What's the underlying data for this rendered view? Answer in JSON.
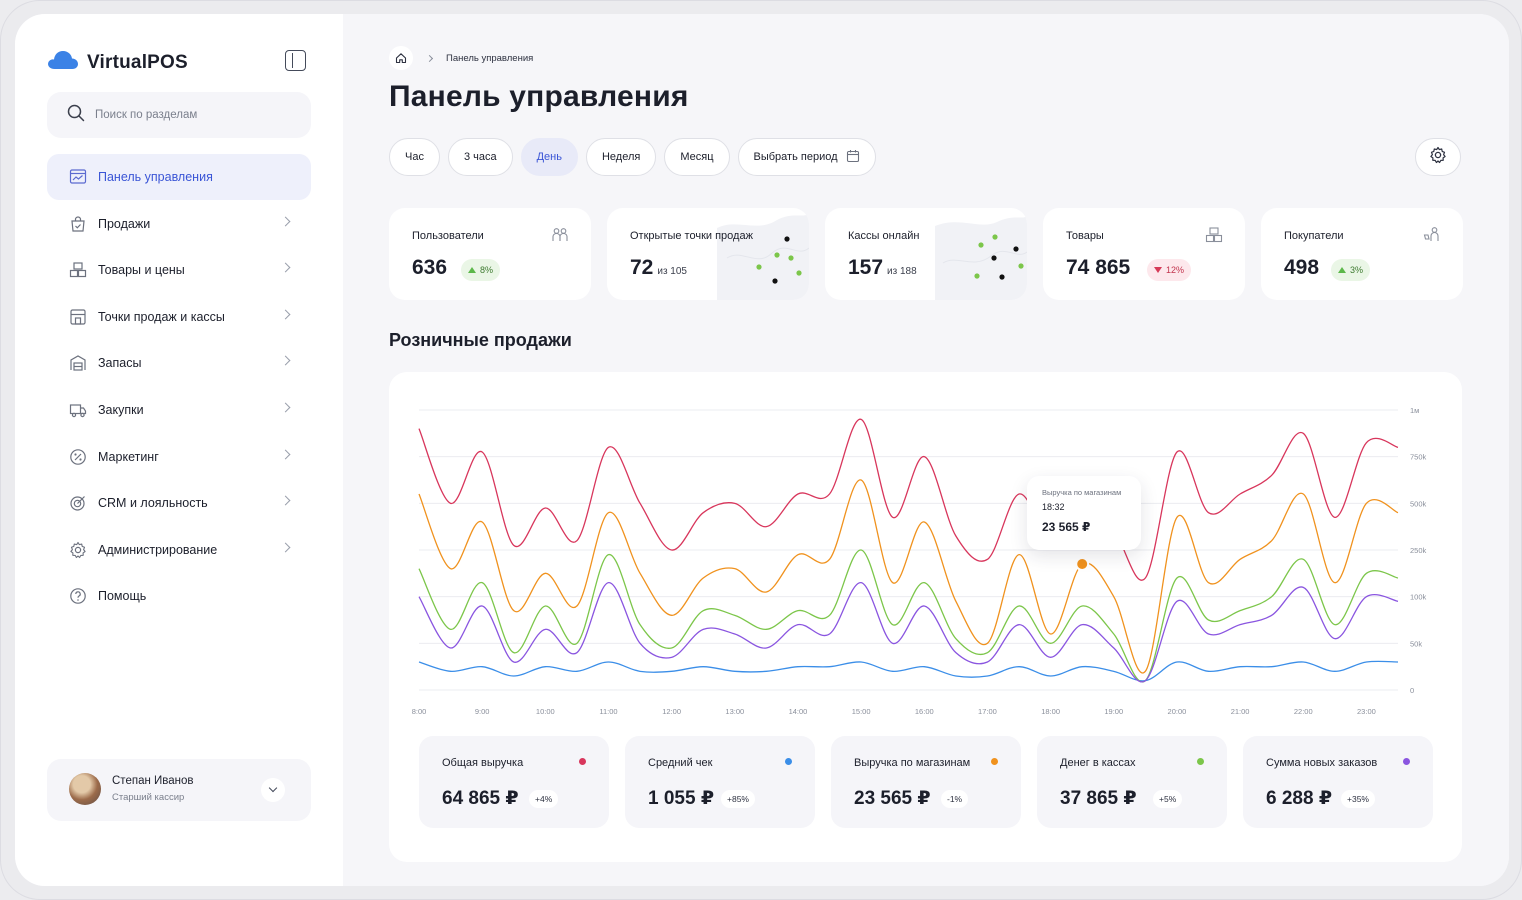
{
  "app": {
    "name": "VirtualPOS",
    "brand_color": "#3b82e6"
  },
  "sidebar": {
    "search_placeholder": "Поиск по разделам",
    "items": [
      {
        "label": "Панель управления",
        "icon": "dashboard-icon",
        "active": true
      },
      {
        "label": "Продажи",
        "icon": "shopping-bag-icon"
      },
      {
        "label": "Товары и цены",
        "icon": "boxes-icon"
      },
      {
        "label": "Точки продаж и кассы",
        "icon": "store-icon"
      },
      {
        "label": "Запасы",
        "icon": "warehouse-icon"
      },
      {
        "label": "Закупки",
        "icon": "truck-icon"
      },
      {
        "label": "Маркетинг",
        "icon": "percent-icon"
      },
      {
        "label": "CRM и лояльность",
        "icon": "target-icon"
      },
      {
        "label": "Администрирование",
        "icon": "gear-icon"
      },
      {
        "label": "Помощь",
        "icon": "help-icon"
      }
    ],
    "profile": {
      "name": "Степан Иванов",
      "role": "Старший кассир"
    }
  },
  "header": {
    "breadcrumb": "Панель управления",
    "title": "Панель управления"
  },
  "periods": {
    "options": [
      "Час",
      "3 часа",
      "День",
      "Неделя",
      "Месяц"
    ],
    "selected": "День",
    "custom_label": "Выбрать период"
  },
  "kpis": [
    {
      "title": "Пользователи",
      "value": "636",
      "change": "8%",
      "trend": "up",
      "icon": "users-icon"
    },
    {
      "title": "Открытые точки продаж",
      "value": "72",
      "suffix": "из 105"
    },
    {
      "title": "Кассы онлайн",
      "value": "157",
      "suffix": "из 188"
    },
    {
      "title": "Товары",
      "value": "74 865",
      "change": "12%",
      "trend": "down",
      "icon": "boxes-icon"
    },
    {
      "title": "Покупатели",
      "value": "498",
      "change": "3%",
      "trend": "up",
      "icon": "buyers-icon"
    }
  ],
  "section_title": "Розничные продажи",
  "chart_data": {
    "type": "line",
    "title": "Розничные продажи",
    "x": [
      "8:00",
      "8:30",
      "9:00",
      "9:30",
      "10:00",
      "10:30",
      "11:00",
      "11:30",
      "12:00",
      "12:30",
      "13:00",
      "13:30",
      "14:00",
      "14:30",
      "15:00",
      "15:30",
      "16:00",
      "16:30",
      "17:00",
      "17:30",
      "18:00",
      "18:30",
      "19:00",
      "19:30",
      "20:00",
      "20:30",
      "21:00",
      "21:30",
      "22:00",
      "22:30",
      "23:00",
      "23:30"
    ],
    "x_tick_labels": [
      "8:00",
      "9:00",
      "10:00",
      "11:00",
      "12:00",
      "13:00",
      "14:00",
      "15:00",
      "16:00",
      "17:00",
      "18:00",
      "19:00",
      "20:00",
      "21:00",
      "22:00",
      "23:00"
    ],
    "y_tick_labels": [
      "0",
      "50k",
      "100k",
      "250k",
      "500k",
      "750k",
      "1м"
    ],
    "y_ticks": [
      0,
      1,
      2,
      3,
      4,
      5,
      6
    ],
    "y_scale": "nonlinear (tick labels evenly spaced)",
    "ylim": [
      0,
      6
    ],
    "grid": "horizontal",
    "series": [
      {
        "name": "Общая выручка",
        "color": "#d8365c",
        "values": [
          5.6,
          4.0,
          5.1,
          3.1,
          3.9,
          3.2,
          5.2,
          4.0,
          3.0,
          3.8,
          4.0,
          3.5,
          4.2,
          4.2,
          5.8,
          3.7,
          5.0,
          3.3,
          2.8,
          4.2,
          3.2,
          3.7,
          3.4,
          2.4,
          5.1,
          3.8,
          4.2,
          4.6,
          5.5,
          3.7,
          5.3,
          5.2
        ]
      },
      {
        "name": "Средний чек",
        "color": "#3b8ee8",
        "values": [
          0.6,
          0.4,
          0.5,
          0.3,
          0.5,
          0.4,
          0.6,
          0.4,
          0.4,
          0.5,
          0.4,
          0.4,
          0.5,
          0.5,
          0.6,
          0.4,
          0.5,
          0.3,
          0.3,
          0.5,
          0.3,
          0.5,
          0.4,
          0.2,
          0.6,
          0.4,
          0.5,
          0.5,
          0.6,
          0.4,
          0.6,
          0.6
        ]
      },
      {
        "name": "Выручка по магазинам",
        "color": "#f0921e",
        "values": [
          4.2,
          2.6,
          3.6,
          1.7,
          2.5,
          1.8,
          3.8,
          2.5,
          1.6,
          2.4,
          2.6,
          2.1,
          2.9,
          2.8,
          4.5,
          2.3,
          3.6,
          1.9,
          1.0,
          2.9,
          1.2,
          2.7,
          2.0,
          0.4,
          3.7,
          2.3,
          2.8,
          3.2,
          4.2,
          2.3,
          4.0,
          3.8
        ]
      },
      {
        "name": "Денег в кассах",
        "color": "#7cc64a",
        "values": [
          2.6,
          1.3,
          2.3,
          0.8,
          1.8,
          1.0,
          2.9,
          1.4,
          0.9,
          1.7,
          1.6,
          1.3,
          1.7,
          1.6,
          3.0,
          1.4,
          2.3,
          1.1,
          0.8,
          1.8,
          1.0,
          1.8,
          1.2,
          0.2,
          2.4,
          1.5,
          1.7,
          2.0,
          2.8,
          1.4,
          2.5,
          2.4
        ]
      },
      {
        "name": "Сумма новых заказов",
        "color": "#8a55e0",
        "values": [
          2.0,
          0.9,
          1.8,
          0.6,
          1.3,
          0.8,
          2.3,
          1.0,
          0.7,
          1.3,
          1.2,
          0.9,
          1.4,
          1.2,
          2.3,
          1.0,
          1.8,
          0.8,
          0.6,
          1.4,
          0.7,
          1.4,
          0.9,
          0.2,
          1.9,
          1.2,
          1.4,
          1.6,
          2.2,
          1.1,
          2.0,
          1.9
        ]
      }
    ],
    "highlight": {
      "series": "Выручка по магазинам",
      "x": "18:30"
    }
  },
  "tooltip": {
    "title": "Выручка по магазинам",
    "time": "18:32",
    "value": "23 565 ₽"
  },
  "stats": [
    {
      "title": "Общая выручка",
      "value": "64 865 ₽",
      "change": "+4%",
      "color": "#d8365c"
    },
    {
      "title": "Средний чек",
      "value": "1 055 ₽",
      "change": "+85%",
      "color": "#3b8ee8"
    },
    {
      "title": "Выручка по магазинам",
      "value": "23 565 ₽",
      "change": "-1%",
      "color": "#f0921e"
    },
    {
      "title": "Денег в кассах",
      "value": "37 865 ₽",
      "change": "+5%",
      "color": "#7cc64a"
    },
    {
      "title": "Сумма новых заказов",
      "value": "6 288 ₽",
      "change": "+35%",
      "color": "#8a55e0"
    }
  ]
}
